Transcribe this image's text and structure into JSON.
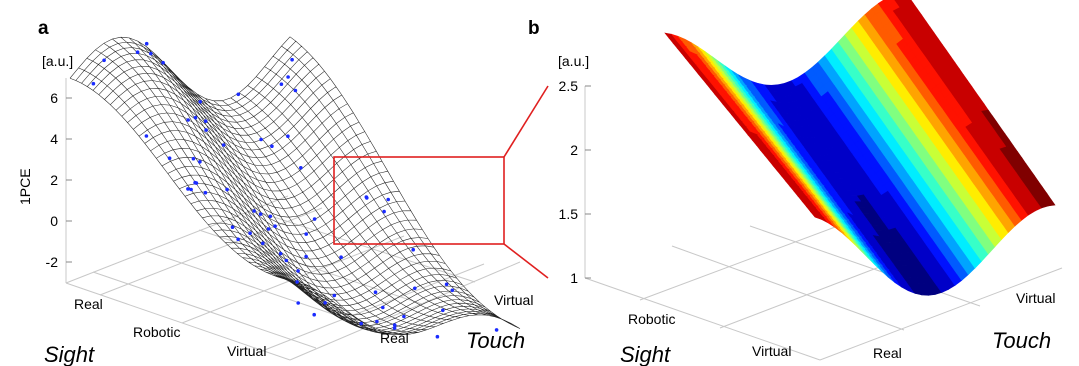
{
  "panels": {
    "a": {
      "label": "a",
      "unit": "[a.u.]",
      "zlabel": "1PCE"
    },
    "b": {
      "label": "b",
      "unit": "[a.u.]"
    }
  },
  "axes": {
    "sight_title": "Sight",
    "touch_title": "Touch",
    "sight_ticks": [
      "Real",
      "Robotic",
      "Virtual"
    ],
    "touch_ticks": [
      "Real",
      "Virtual"
    ]
  },
  "chart_data": [
    {
      "panel": "a",
      "type": "surface",
      "render": "wireframe mesh with scatter points",
      "xlabel": "Sight",
      "ylabel": "Touch",
      "zlabel": "1PCE",
      "x_categories": [
        "Real",
        "Robotic",
        "Virtual"
      ],
      "y_categories": [
        "Real",
        "Virtual"
      ],
      "zlim": [
        -3,
        7
      ],
      "zticks": [
        -2,
        0,
        2,
        4,
        6
      ],
      "scatter_color": "#1a2bff",
      "mesh_color": "#222222",
      "highlight_box_color": "#e02020",
      "grid": true
    },
    {
      "panel": "b",
      "type": "surface",
      "render": "filled surface, jet colormap",
      "xlabel": "Sight",
      "ylabel": "Touch",
      "x_categories": [
        "Robotic",
        "Virtual"
      ],
      "y_categories": [
        "Real",
        "Virtual"
      ],
      "zlim": [
        1,
        2.5
      ],
      "zticks": [
        1,
        1.5,
        2,
        2.5
      ],
      "grid": true
    }
  ]
}
